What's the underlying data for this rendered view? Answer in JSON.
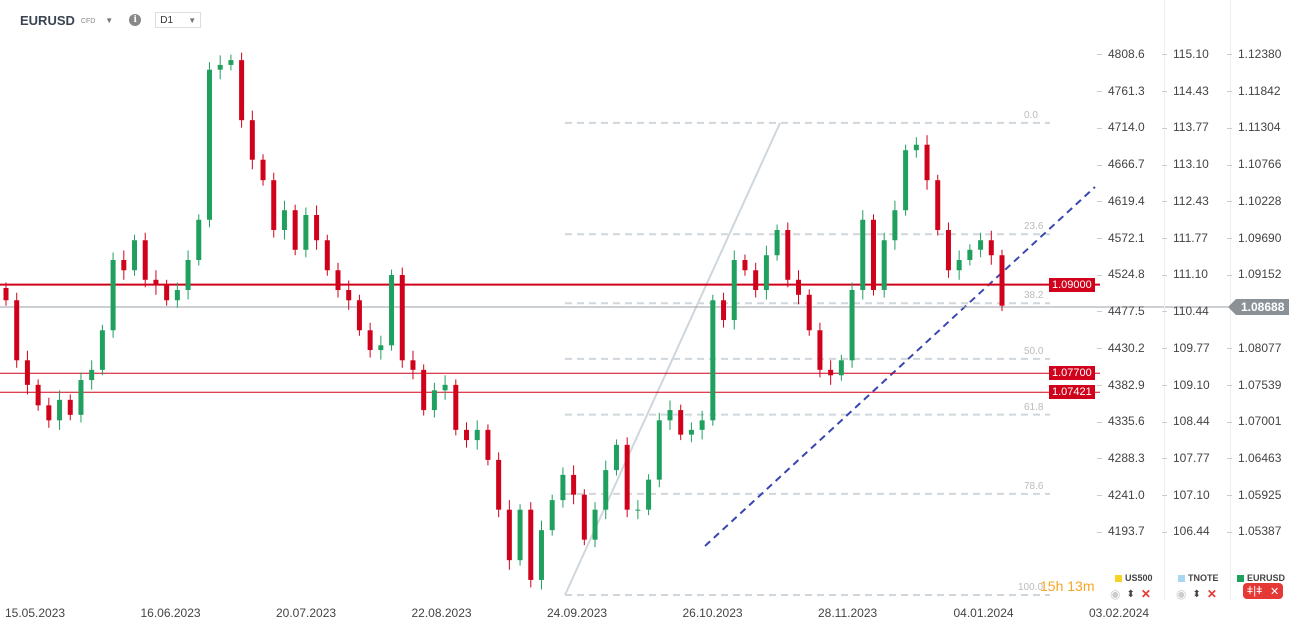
{
  "header": {
    "symbol": "EURUSD",
    "type": "CFD",
    "timeframe": "D1"
  },
  "countdown": "15h 13m",
  "current_price_label": "1.08688",
  "levels": [
    {
      "label": "1.09000",
      "price": 1.09
    },
    {
      "label": "1.07700",
      "price": 1.077
    },
    {
      "label": "1.07421",
      "price": 1.07421
    }
  ],
  "fib": {
    "high": 1.1137,
    "low": 1.0445,
    "levels": [
      "0.0",
      "23.6",
      "38.2",
      "50.0",
      "61.8",
      "78.6",
      "100.0"
    ],
    "ratios": [
      0,
      0.236,
      0.382,
      0.5,
      0.618,
      0.786,
      1.0
    ]
  },
  "legend": [
    {
      "name": "US500",
      "color": "#f5d327"
    },
    {
      "name": "TNOTE",
      "color": "#a8d8f0"
    },
    {
      "name": "EURUSD",
      "color": "#1fa05f"
    }
  ],
  "chart_data": {
    "type": "candlestick",
    "title": "EURUSD",
    "x_tick_labels": [
      "15.05.2023",
      "16.06.2023",
      "20.07.2023",
      "22.08.2023",
      "24.09.2023",
      "26.10.2023",
      "28.11.2023",
      "04.01.2024",
      "03.02.2024"
    ],
    "axes": {
      "US500": [
        "4808.6",
        "4761.3",
        "4714.0",
        "4666.7",
        "4619.4",
        "4572.1",
        "4524.8",
        "4477.5",
        "4430.2",
        "4382.9",
        "4335.6",
        "4288.3",
        "4241.0",
        "4193.7"
      ],
      "TNOTE": [
        "115.10",
        "114.43",
        "113.77",
        "113.10",
        "112.43",
        "111.77",
        "111.10",
        "110.44",
        "109.77",
        "109.10",
        "108.44",
        "107.77",
        "107.10",
        "106.44"
      ],
      "EURUSD": [
        "1.12380",
        "1.11842",
        "1.11304",
        "1.10766",
        "1.10228",
        "1.09690",
        "1.09152",
        "",
        "1.08077",
        "1.07539",
        "1.07001",
        "1.06463",
        "1.05925",
        "1.05387"
      ]
    },
    "ylim": [
      1.0486,
      1.1265
    ],
    "first_open": 1.0895,
    "closes": [
      1.0877,
      1.0789,
      1.0753,
      1.0723,
      1.0701,
      1.0731,
      1.0709,
      1.076,
      1.0775,
      1.0833,
      1.0936,
      1.0921,
      1.0965,
      1.0907,
      1.0899,
      1.0877,
      1.0892,
      1.0936,
      1.0995,
      1.1215,
      1.1222,
      1.1229,
      1.1141,
      1.1083,
      1.1053,
      1.098,
      1.1009,
      1.0951,
      1.1002,
      1.0965,
      1.0921,
      1.0892,
      1.0877,
      1.0833,
      1.0804,
      1.0811,
      1.0914,
      1.0789,
      1.0775,
      1.0716,
      1.0745,
      1.0753,
      1.0687,
      1.0672,
      1.0687,
      1.0643,
      1.057,
      1.0496,
      1.057,
      1.0467,
      1.054,
      1.0584,
      1.0621,
      1.0592,
      1.0526,
      1.057,
      1.0628,
      1.0665,
      1.057,
      1.057,
      1.0614,
      1.0701,
      1.0716,
      1.068,
      1.0687,
      1.0701,
      1.0877,
      1.0848,
      1.0936,
      1.0921,
      1.0892,
      1.0943,
      1.098,
      1.0907,
      1.0885,
      1.0833,
      1.0775,
      1.0767,
      1.0789,
      1.0892,
      1.0995,
      1.0892,
      1.0965,
      1.1009,
      1.1097,
      1.1105,
      1.1053,
      1.098,
      1.0921,
      1.0936,
      1.0951,
      1.0965,
      1.0943,
      1.0869
    ],
    "up_color": "#1fa05f",
    "down_color": "#d0021b"
  }
}
